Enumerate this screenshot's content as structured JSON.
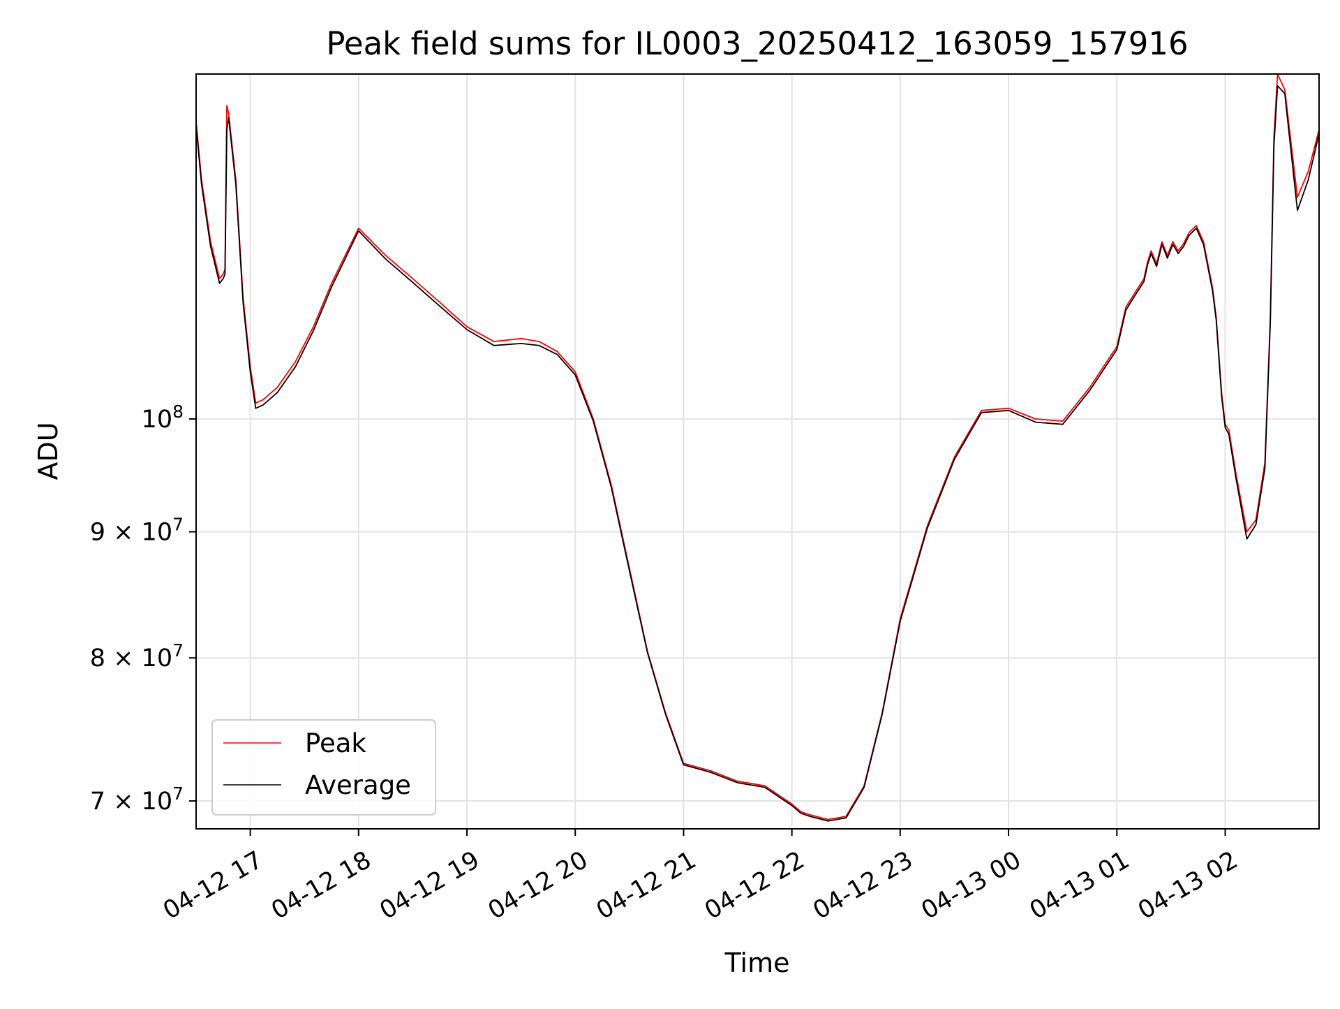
{
  "chart_data": {
    "type": "line",
    "title": "Peak field sums for IL0003_20250412_163059_157916",
    "xlabel": "Time",
    "ylabel": "ADU",
    "y_scale": "log",
    "grid": true,
    "legend_position": "lower-left",
    "x_range": [
      "2025-04-12 16:30",
      "2025-04-13 02:52"
    ],
    "ylim": [
      68200000,
      138000000
    ],
    "x_ticks": [
      "04-12 17",
      "04-12 18",
      "04-12 19",
      "04-12 20",
      "04-12 21",
      "04-12 22",
      "04-12 23",
      "04-13 00",
      "04-13 01",
      "04-13 02"
    ],
    "x_tick_times": [
      "2025-04-12 17:00",
      "2025-04-12 18:00",
      "2025-04-12 19:00",
      "2025-04-12 20:00",
      "2025-04-12 21:00",
      "2025-04-12 22:00",
      "2025-04-12 23:00",
      "2025-04-13 00:00",
      "2025-04-13 01:00",
      "2025-04-13 02:00"
    ],
    "y_ticks": [
      {
        "value": 70000000,
        "mantissa": "7",
        "base": "10",
        "exp": "7"
      },
      {
        "value": 80000000,
        "mantissa": "8",
        "base": "10",
        "exp": "7"
      },
      {
        "value": 90000000,
        "mantissa": "9",
        "base": "10",
        "exp": "7"
      },
      {
        "value": 100000000,
        "mantissa": "",
        "base": "10",
        "exp": "8"
      }
    ],
    "series": [
      {
        "name": "Peak",
        "color": "#ff0000",
        "x": [
          "2025-04-12 16:30",
          "2025-04-12 16:33",
          "2025-04-12 16:38",
          "2025-04-12 16:43",
          "2025-04-12 16:45",
          "2025-04-12 16:46",
          "2025-04-12 16:47",
          "2025-04-12 16:48",
          "2025-04-12 16:52",
          "2025-04-12 16:56",
          "2025-04-12 17:00",
          "2025-04-12 17:03",
          "2025-04-12 17:07",
          "2025-04-12 17:15",
          "2025-04-12 17:25",
          "2025-04-12 17:35",
          "2025-04-12 17:45",
          "2025-04-12 18:00",
          "2025-04-12 18:15",
          "2025-04-12 18:30",
          "2025-04-12 18:45",
          "2025-04-12 19:00",
          "2025-04-12 19:15",
          "2025-04-12 19:30",
          "2025-04-12 19:40",
          "2025-04-12 19:50",
          "2025-04-12 20:00",
          "2025-04-12 20:10",
          "2025-04-12 20:20",
          "2025-04-12 20:30",
          "2025-04-12 20:40",
          "2025-04-12 20:50",
          "2025-04-12 21:00",
          "2025-04-12 21:15",
          "2025-04-12 21:30",
          "2025-04-12 21:45",
          "2025-04-12 22:00",
          "2025-04-12 22:05",
          "2025-04-12 22:10",
          "2025-04-12 22:20",
          "2025-04-12 22:30",
          "2025-04-12 22:40",
          "2025-04-12 22:50",
          "2025-04-12 23:00",
          "2025-04-12 23:15",
          "2025-04-12 23:30",
          "2025-04-12 23:45",
          "2025-04-13 00:00",
          "2025-04-13 00:15",
          "2025-04-13 00:30",
          "2025-04-13 00:45",
          "2025-04-13 01:00",
          "2025-04-13 01:05",
          "2025-04-13 01:10",
          "2025-04-13 01:15",
          "2025-04-13 01:17",
          "2025-04-13 01:19",
          "2025-04-13 01:22",
          "2025-04-13 01:25",
          "2025-04-13 01:28",
          "2025-04-13 01:31",
          "2025-04-13 01:34",
          "2025-04-13 01:37",
          "2025-04-13 01:40",
          "2025-04-13 01:44",
          "2025-04-13 01:48",
          "2025-04-13 01:53",
          "2025-04-13 01:55",
          "2025-04-13 01:56",
          "2025-04-13 01:57",
          "2025-04-13 01:58",
          "2025-04-13 02:00",
          "2025-04-13 02:02",
          "2025-04-13 02:06",
          "2025-04-13 02:12",
          "2025-04-13 02:17",
          "2025-04-13 02:22",
          "2025-04-13 02:25",
          "2025-04-13 02:27",
          "2025-04-13 02:29",
          "2025-04-13 02:33",
          "2025-04-13 02:40",
          "2025-04-13 02:46",
          "2025-04-13 02:52"
        ],
        "values": [
          132000000,
          125000000,
          118000000,
          114000000,
          114500000,
          115000000,
          134000000,
          133000000,
          125000000,
          112000000,
          105000000,
          101500000,
          101800000,
          103000000,
          105500000,
          109000000,
          113500000,
          119500000,
          116500000,
          114000000,
          111500000,
          109000000,
          107500000,
          107800000,
          107500000,
          106500000,
          104500000,
          100000000,
          94000000,
          87000000,
          80500000,
          76000000,
          72500000,
          72000000,
          71300000,
          71000000,
          69800000,
          69300000,
          69100000,
          68800000,
          69000000,
          71000000,
          76000000,
          83000000,
          90500000,
          96500000,
          100800000,
          101000000,
          100000000,
          99800000,
          103000000,
          107000000,
          111000000,
          112500000,
          114000000,
          115800000,
          117000000,
          115600000,
          118000000,
          116500000,
          118000000,
          117000000,
          117800000,
          119000000,
          119800000,
          118000000,
          113000000,
          110000000,
          107500000,
          105000000,
          102500000,
          99500000,
          99000000,
          95000000,
          90000000,
          91000000,
          96000000,
          110000000,
          130000000,
          138000000,
          136000000,
          123000000,
          126000000,
          131000000
        ]
      },
      {
        "name": "Average",
        "color": "#000000",
        "x": [
          "2025-04-12 16:30",
          "2025-04-12 16:33",
          "2025-04-12 16:38",
          "2025-04-12 16:43",
          "2025-04-12 16:45",
          "2025-04-12 16:46",
          "2025-04-12 16:47",
          "2025-04-12 16:48",
          "2025-04-12 16:52",
          "2025-04-12 16:56",
          "2025-04-12 17:00",
          "2025-04-12 17:03",
          "2025-04-12 17:07",
          "2025-04-12 17:15",
          "2025-04-12 17:25",
          "2025-04-12 17:35",
          "2025-04-12 17:45",
          "2025-04-12 18:00",
          "2025-04-12 18:15",
          "2025-04-12 18:30",
          "2025-04-12 18:45",
          "2025-04-12 19:00",
          "2025-04-12 19:15",
          "2025-04-12 19:30",
          "2025-04-12 19:40",
          "2025-04-12 19:50",
          "2025-04-12 20:00",
          "2025-04-12 20:10",
          "2025-04-12 20:20",
          "2025-04-12 20:30",
          "2025-04-12 20:40",
          "2025-04-12 20:50",
          "2025-04-12 21:00",
          "2025-04-12 21:15",
          "2025-04-12 21:30",
          "2025-04-12 21:45",
          "2025-04-12 22:00",
          "2025-04-12 22:05",
          "2025-04-12 22:10",
          "2025-04-12 22:20",
          "2025-04-12 22:30",
          "2025-04-12 22:40",
          "2025-04-12 22:50",
          "2025-04-12 23:00",
          "2025-04-12 23:15",
          "2025-04-12 23:30",
          "2025-04-12 23:45",
          "2025-04-13 00:00",
          "2025-04-13 00:15",
          "2025-04-13 00:30",
          "2025-04-13 00:45",
          "2025-04-13 01:00",
          "2025-04-13 01:05",
          "2025-04-13 01:10",
          "2025-04-13 01:15",
          "2025-04-13 01:17",
          "2025-04-13 01:19",
          "2025-04-13 01:22",
          "2025-04-13 01:25",
          "2025-04-13 01:28",
          "2025-04-13 01:31",
          "2025-04-13 01:34",
          "2025-04-13 01:37",
          "2025-04-13 01:40",
          "2025-04-13 01:44",
          "2025-04-13 01:48",
          "2025-04-13 01:53",
          "2025-04-13 01:55",
          "2025-04-13 01:56",
          "2025-04-13 01:57",
          "2025-04-13 01:58",
          "2025-04-13 02:00",
          "2025-04-13 02:02",
          "2025-04-13 02:06",
          "2025-04-13 02:12",
          "2025-04-13 02:17",
          "2025-04-13 02:22",
          "2025-04-13 02:25",
          "2025-04-13 02:27",
          "2025-04-13 02:29",
          "2025-04-13 02:33",
          "2025-04-13 02:40",
          "2025-04-13 02:46",
          "2025-04-13 02:52"
        ],
        "values": [
          131500000,
          124500000,
          117500000,
          113500000,
          114000000,
          114500000,
          131000000,
          132500000,
          124500000,
          111500000,
          104500000,
          101000000,
          101300000,
          102500000,
          105000000,
          108600000,
          113100000,
          119200000,
          116100000,
          113600000,
          111100000,
          108700000,
          107100000,
          107300000,
          107100000,
          106200000,
          104200000,
          99800000,
          93800000,
          86800000,
          80400000,
          75900000,
          72400000,
          71900000,
          71200000,
          70900000,
          69700000,
          69200000,
          69000000,
          68700000,
          68900000,
          70900000,
          75900000,
          82800000,
          90300000,
          96300000,
          100600000,
          100800000,
          99700000,
          99500000,
          102700000,
          106700000,
          110700000,
          112200000,
          113700000,
          115500000,
          116700000,
          115300000,
          117700000,
          116200000,
          117700000,
          116700000,
          117500000,
          118700000,
          119500000,
          117700000,
          112700000,
          109700000,
          107200000,
          104700000,
          102200000,
          99200000,
          98600000,
          94600000,
          89400000,
          90600000,
          95500000,
          109500000,
          129000000,
          136500000,
          135500000,
          121500000,
          125000000,
          130500000
        ]
      }
    ]
  }
}
